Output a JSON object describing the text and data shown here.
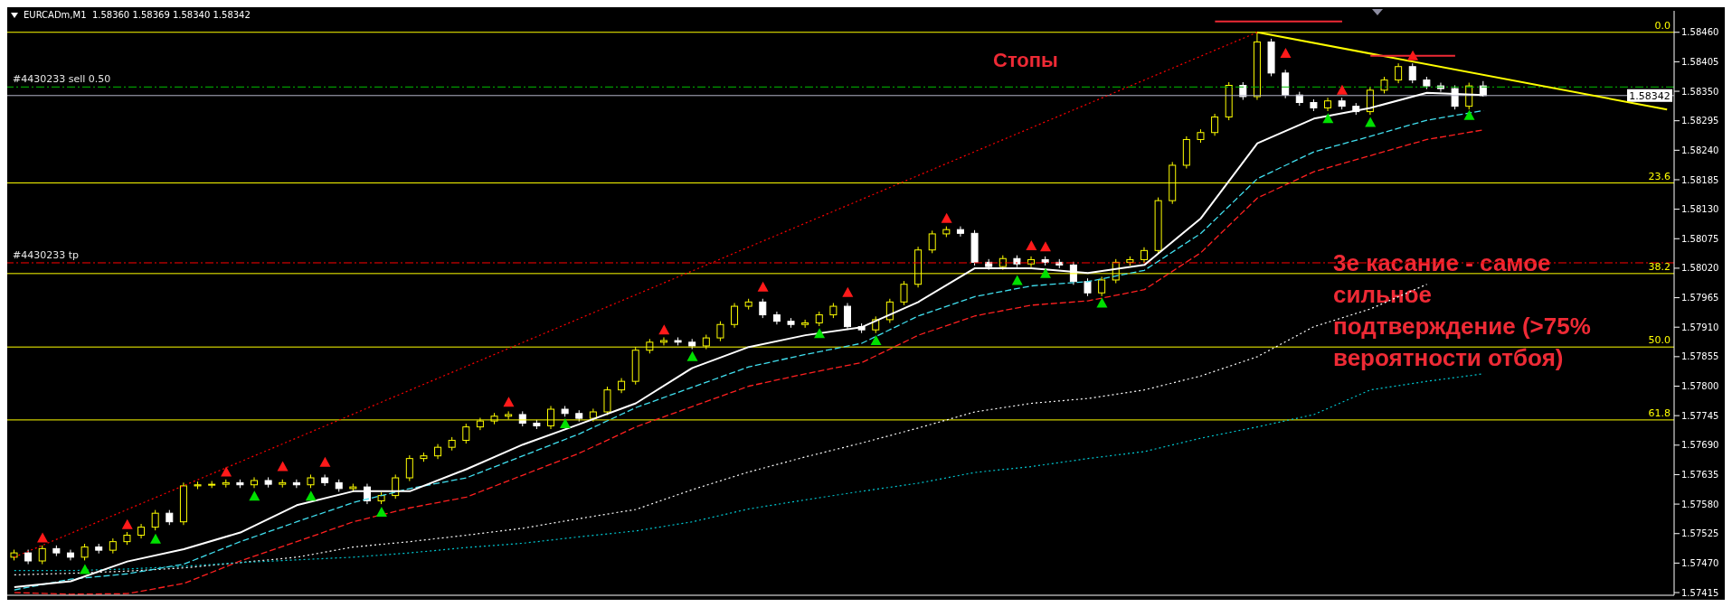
{
  "chart_data": {
    "type": "candlestick",
    "title": "EURCADm,M1  1.58360 1.58369 1.58340 1.58342",
    "categories": [
      null,
      null,
      null,
      null,
      null,
      null,
      null,
      null,
      null,
      null,
      null,
      null,
      null,
      null,
      null,
      null,
      null,
      null,
      null,
      null,
      null,
      null,
      null,
      null,
      null,
      null,
      null,
      null,
      null,
      null,
      null,
      null,
      null,
      null,
      null,
      null,
      null,
      null,
      null,
      null,
      null,
      null,
      null,
      null,
      null,
      null,
      null,
      null,
      null,
      null,
      null,
      null,
      null,
      null,
      null,
      null,
      null,
      null,
      null,
      null,
      null,
      null,
      null,
      null,
      null,
      null,
      null,
      null,
      null,
      null,
      null,
      null,
      null,
      null,
      null,
      null,
      null,
      null,
      null,
      null,
      null,
      null,
      null,
      null,
      null,
      null,
      null,
      null,
      null,
      null,
      null,
      null,
      null,
      null,
      null,
      null,
      null,
      null,
      null,
      null,
      null,
      null,
      null,
      null,
      null,
      null,
      null,
      null,
      null,
      null,
      null,
      null,
      null,
      null,
      null,
      null,
      null,
      null
    ],
    "ohlc": [
      [
        1.57481,
        1.57495,
        1.57475,
        1.57489
      ],
      [
        1.57489,
        1.57495,
        1.57468,
        1.57474
      ],
      [
        1.57474,
        1.57503,
        1.57468,
        1.57497
      ],
      [
        1.57497,
        1.57503,
        1.57483,
        1.57489
      ],
      [
        1.57489,
        1.57495,
        1.57475,
        1.57481
      ],
      [
        1.57481,
        1.57506,
        1.57475,
        1.575
      ],
      [
        1.575,
        1.57506,
        1.57488,
        1.57494
      ],
      [
        1.57494,
        1.57516,
        1.57488,
        1.5751
      ],
      [
        1.5751,
        1.57528,
        1.57504,
        1.57522
      ],
      [
        1.57522,
        1.57543,
        1.57516,
        1.57537
      ],
      [
        1.57537,
        1.57569,
        1.57531,
        1.57563
      ],
      [
        1.57563,
        1.57569,
        1.57541,
        1.57547
      ],
      [
        1.57547,
        1.5762,
        1.57541,
        1.57614
      ],
      [
        1.57614,
        1.57622,
        1.57608,
        1.57616
      ],
      [
        1.57616,
        1.57623,
        1.5761,
        1.57617
      ],
      [
        1.57617,
        1.57626,
        1.57611,
        1.5762
      ],
      [
        1.5762,
        1.57626,
        1.5761,
        1.57616
      ],
      [
        1.57616,
        1.5763,
        1.5761,
        1.57624
      ],
      [
        1.57624,
        1.5763,
        1.57611,
        1.57617
      ],
      [
        1.57617,
        1.57626,
        1.57611,
        1.5762
      ],
      [
        1.5762,
        1.57626,
        1.5761,
        1.57616
      ],
      [
        1.57616,
        1.57635,
        1.5761,
        1.57629
      ],
      [
        1.57629,
        1.57635,
        1.57614,
        1.5762
      ],
      [
        1.5762,
        1.57626,
        1.57603,
        1.57609
      ],
      [
        1.57609,
        1.57618,
        1.57603,
        1.57612
      ],
      [
        1.57612,
        1.57618,
        1.5758,
        1.57586
      ],
      [
        1.57586,
        1.57602,
        1.5758,
        1.57596
      ],
      [
        1.57596,
        1.57635,
        1.5759,
        1.57629
      ],
      [
        1.57629,
        1.57671,
        1.57623,
        1.57665
      ],
      [
        1.57665,
        1.57676,
        1.57659,
        1.5767
      ],
      [
        1.5767,
        1.57692,
        1.57664,
        1.57686
      ],
      [
        1.57686,
        1.57705,
        1.5768,
        1.57699
      ],
      [
        1.57699,
        1.5773,
        1.57693,
        1.57724
      ],
      [
        1.57724,
        1.57741,
        1.57718,
        1.57735
      ],
      [
        1.57735,
        1.5775,
        1.57729,
        1.57744
      ],
      [
        1.57744,
        1.57753,
        1.57738,
        1.57747
      ],
      [
        1.57747,
        1.57753,
        1.57725,
        1.57731
      ],
      [
        1.57731,
        1.57737,
        1.5772,
        1.57726
      ],
      [
        1.57726,
        1.57763,
        1.5772,
        1.57757
      ],
      [
        1.57757,
        1.57763,
        1.57743,
        1.57749
      ],
      [
        1.57749,
        1.57755,
        1.57734,
        1.5774
      ],
      [
        1.5774,
        1.57758,
        1.57734,
        1.57752
      ],
      [
        1.57752,
        1.57799,
        1.57746,
        1.57793
      ],
      [
        1.57793,
        1.57815,
        1.57787,
        1.57809
      ],
      [
        1.57809,
        1.57873,
        1.57803,
        1.57867
      ],
      [
        1.57867,
        1.57888,
        1.57861,
        1.57882
      ],
      [
        1.57882,
        1.57891,
        1.57876,
        1.57885
      ],
      [
        1.57885,
        1.57891,
        1.57876,
        1.57882
      ],
      [
        1.57882,
        1.57888,
        1.57869,
        1.57875
      ],
      [
        1.57875,
        1.57896,
        1.57869,
        1.5789
      ],
      [
        1.5789,
        1.57921,
        1.57884,
        1.57915
      ],
      [
        1.57915,
        1.57955,
        1.57909,
        1.57949
      ],
      [
        1.57949,
        1.57963,
        1.57943,
        1.57957
      ],
      [
        1.57957,
        1.57963,
        1.57927,
        1.57933
      ],
      [
        1.57933,
        1.57939,
        1.57915,
        1.57921
      ],
      [
        1.57921,
        1.57927,
        1.57909,
        1.57915
      ],
      [
        1.57915,
        1.57924,
        1.57909,
        1.57918
      ],
      [
        1.57918,
        1.57939,
        1.57912,
        1.57933
      ],
      [
        1.57933,
        1.57955,
        1.57927,
        1.57949
      ],
      [
        1.57949,
        1.57955,
        1.57905,
        1.57911
      ],
      [
        1.57911,
        1.57917,
        1.57899,
        1.57905
      ],
      [
        1.57905,
        1.5793,
        1.57899,
        1.57924
      ],
      [
        1.57924,
        1.57963,
        1.57918,
        1.57957
      ],
      [
        1.57957,
        1.57996,
        1.57951,
        1.5799
      ],
      [
        1.5799,
        1.5806,
        1.57984,
        1.58054
      ],
      [
        1.58054,
        1.5809,
        1.58048,
        1.58084
      ],
      [
        1.58084,
        1.58098,
        1.58078,
        1.58092
      ],
      [
        1.58092,
        1.58098,
        1.58079,
        1.58085
      ],
      [
        1.58085,
        1.58091,
        1.58025,
        1.58031
      ],
      [
        1.58031,
        1.58037,
        1.58017,
        1.58023
      ],
      [
        1.58023,
        1.58044,
        1.58017,
        1.58038
      ],
      [
        1.58038,
        1.58044,
        1.58022,
        1.58028
      ],
      [
        1.58028,
        1.58042,
        1.58022,
        1.58036
      ],
      [
        1.58036,
        1.58042,
        1.58025,
        1.58031
      ],
      [
        1.58031,
        1.58037,
        1.5802,
        1.58026
      ],
      [
        1.58026,
        1.58032,
        1.57989,
        1.57995
      ],
      [
        1.57995,
        1.58001,
        1.57968,
        1.57974
      ],
      [
        1.57974,
        1.58004,
        1.57968,
        1.57998
      ],
      [
        1.57998,
        1.58037,
        1.57992,
        1.58031
      ],
      [
        1.58031,
        1.58042,
        1.58025,
        1.58036
      ],
      [
        1.58036,
        1.58059,
        1.5803,
        1.58053
      ],
      [
        1.58053,
        1.58152,
        1.58047,
        1.58146
      ],
      [
        1.58146,
        1.58218,
        1.5814,
        1.58212
      ],
      [
        1.58212,
        1.58266,
        1.58206,
        1.5826
      ],
      [
        1.5826,
        1.58279,
        1.58254,
        1.58273
      ],
      [
        1.58273,
        1.58308,
        1.58267,
        1.58302
      ],
      [
        1.58302,
        1.58367,
        1.58296,
        1.58361
      ],
      [
        1.58361,
        1.58367,
        1.58334,
        1.5834
      ],
      [
        1.5834,
        1.5846,
        1.58334,
        1.58442
      ],
      [
        1.58442,
        1.58448,
        1.58378,
        1.58384
      ],
      [
        1.58384,
        1.5839,
        1.58337,
        1.58343
      ],
      [
        1.58343,
        1.58349,
        1.58323,
        1.58329
      ],
      [
        1.58329,
        1.58335,
        1.58313,
        1.58319
      ],
      [
        1.58319,
        1.58338,
        1.58313,
        1.58332
      ],
      [
        1.58332,
        1.58338,
        1.58316,
        1.58322
      ],
      [
        1.58322,
        1.58328,
        1.58306,
        1.58312
      ],
      [
        1.58312,
        1.58358,
        1.58306,
        1.58352
      ],
      [
        1.58352,
        1.58377,
        1.58346,
        1.58371
      ],
      [
        1.58371,
        1.58402,
        1.58365,
        1.58396
      ],
      [
        1.58396,
        1.58402,
        1.58365,
        1.58371
      ],
      [
        1.58371,
        1.58377,
        1.58354,
        1.5836
      ],
      [
        1.5836,
        1.58366,
        1.58349,
        1.58355
      ],
      [
        1.58355,
        1.58361,
        1.58316,
        1.58322
      ],
      [
        1.58322,
        1.58366,
        1.58316,
        1.5836
      ],
      [
        1.5836,
        1.58369,
        1.5834,
        1.58342
      ],
      null,
      null,
      null,
      null,
      null,
      null,
      null,
      null,
      null,
      null,
      null,
      null,
      null
    ],
    "colors": [
      "#ffff00",
      "#ffffff",
      "#ffff00",
      "#ffffff",
      "#ffffff",
      "#ffff00",
      "#ffffff",
      "#ffff00",
      "#ffff00",
      "#ffff00",
      "#ffff00",
      "#ffffff",
      "#ffff00",
      "#ffff00",
      "#ffff00",
      "#ffff00",
      "#ffffff",
      "#ffff00",
      "#ffffff",
      "#ffff00",
      "#ffffff",
      "#ffff00",
      "#ffffff",
      "#ffffff",
      "#ffff00",
      "#ffffff",
      "#ffff00",
      "#ffff00",
      "#ffff00",
      "#ffff00",
      "#ffff00",
      "#ffff00",
      "#ffff00",
      "#ffff00",
      "#ffff00",
      "#ffff00",
      "#ffffff",
      "#ffffff",
      "#ffff00",
      "#ffffff",
      "#ffffff",
      "#ffff00",
      "#ffff00",
      "#ffff00",
      "#ffff00",
      "#ffff00",
      "#ffff00",
      "#ffffff",
      "#ffffff",
      "#ffff00",
      "#ffff00",
      "#ffff00",
      "#ffff00",
      "#ffffff",
      "#ffffff",
      "#ffffff",
      "#ffff00",
      "#ffff00",
      "#ffff00",
      "#ffffff",
      "#ffffff",
      "#ffff00",
      "#ffff00",
      "#ffff00",
      "#ffff00",
      "#ffff00",
      "#ffff00",
      "#ffffff",
      "#ffffff",
      "#ffffff",
      "#ffff00",
      "#ffffff",
      "#ffff00",
      "#ffffff",
      "#ffffff",
      "#ffffff",
      "#ffffff",
      "#ffff00",
      "#ffff00",
      "#ffff00",
      "#ffff00",
      "#ffff00",
      "#ffff00",
      "#ffff00",
      "#ffff00",
      "#ffff00",
      "#ffff00",
      "#ffffff",
      "#ffff00",
      "#ffffff",
      "#ffffff",
      "#ffffff",
      "#ffffff",
      "#ffff00",
      "#ffffff",
      "#ffffff",
      "#ffff00",
      "#ffff00",
      "#ffff00",
      "#ffffff",
      "#ffffff",
      "#ffffff",
      "#ffffff",
      "#ffff00",
      "#ffffff",
      null,
      null,
      null,
      null,
      null,
      null,
      null,
      null,
      null,
      null,
      null,
      null,
      null
    ],
    "series": [
      {
        "type": "line",
        "color": "#ffffff",
        "line_style": "dotted",
        "values": [
          1.57448,
          null,
          null,
          null,
          1.57451,
          null,
          null,
          null,
          1.57455,
          null,
          null,
          null,
          1.57461,
          null,
          null,
          null,
          1.57471,
          null,
          null,
          null,
          1.57481,
          null,
          null,
          null,
          1.575,
          null,
          null,
          null,
          1.5751,
          null,
          null,
          null,
          1.57522,
          null,
          null,
          null,
          1.57535,
          null,
          null,
          null,
          1.57553,
          null,
          null,
          null,
          1.5757,
          null,
          null,
          null,
          1.57607,
          null,
          null,
          null,
          1.5764,
          null,
          null,
          null,
          1.57668,
          null,
          null,
          null,
          1.57694,
          null,
          null,
          null,
          1.57722,
          null,
          null,
          null,
          1.57752,
          null,
          null,
          null,
          1.57768,
          null,
          null,
          null,
          1.57777,
          null,
          null,
          null,
          1.57793,
          null,
          null,
          null,
          1.57819,
          null,
          null,
          null,
          1.57855,
          null,
          null,
          null,
          1.57911,
          null,
          null,
          null,
          1.57944,
          null,
          null,
          null,
          1.5799,
          null,
          null,
          null,
          null,
          null,
          null,
          null,
          null,
          null,
          null,
          null,
          null,
          null,
          null,
          null,
          null,
          null
        ]
      },
      {
        "type": "line",
        "color": "#00c8d2",
        "line_style": "dotted",
        "values": [
          1.57456,
          null,
          null,
          null,
          1.57456,
          null,
          null,
          null,
          1.57459,
          null,
          null,
          null,
          1.57464,
          null,
          null,
          null,
          1.57471,
          null,
          null,
          null,
          1.57476,
          null,
          null,
          null,
          1.57481,
          null,
          null,
          null,
          1.57489,
          null,
          null,
          null,
          1.57499,
          null,
          null,
          null,
          1.57507,
          null,
          null,
          null,
          1.57519,
          null,
          null,
          null,
          1.5753,
          null,
          null,
          null,
          1.57547,
          null,
          null,
          null,
          1.57571,
          null,
          null,
          null,
          1.57588,
          null,
          null,
          null,
          1.57604,
          null,
          null,
          null,
          1.57619,
          null,
          null,
          null,
          1.57639,
          null,
          null,
          null,
          1.5765,
          null,
          null,
          null,
          1.57665,
          null,
          null,
          null,
          1.57678,
          null,
          null,
          null,
          1.57703,
          null,
          null,
          null,
          1.57724,
          null,
          null,
          null,
          1.57747,
          null,
          null,
          null,
          1.57793,
          null,
          null,
          null,
          1.57809,
          null,
          null,
          null,
          1.57823,
          null,
          null,
          null,
          null,
          null,
          null,
          null,
          null,
          null,
          null,
          null,
          null,
          null
        ]
      },
      {
        "type": "line",
        "color": "#ff2020",
        "line_style": "dashed",
        "values": [
          1.57415,
          null,
          null,
          null,
          1.57412,
          null,
          null,
          null,
          1.57413,
          null,
          null,
          null,
          1.57432,
          null,
          null,
          null,
          1.57474,
          null,
          null,
          null,
          1.5751,
          null,
          null,
          null,
          1.57547,
          null,
          null,
          null,
          1.57573,
          null,
          null,
          null,
          1.57593,
          null,
          null,
          null,
          1.57634,
          null,
          null,
          null,
          1.57675,
          null,
          null,
          null,
          1.57724,
          null,
          null,
          null,
          1.57762,
          null,
          null,
          null,
          1.578,
          null,
          null,
          null,
          1.57823,
          null,
          null,
          null,
          1.57844,
          null,
          null,
          null,
          1.57895,
          null,
          null,
          null,
          1.57931,
          null,
          null,
          null,
          1.57951,
          null,
          null,
          null,
          1.57959,
          null,
          null,
          null,
          1.5798,
          null,
          null,
          null,
          1.58049,
          null,
          null,
          null,
          1.58151,
          null,
          null,
          null,
          1.582,
          null,
          null,
          null,
          1.5823,
          null,
          null,
          null,
          1.5826,
          null,
          null,
          null,
          1.58278,
          null,
          null,
          null,
          null,
          null,
          null,
          null,
          null,
          null,
          null,
          null,
          null,
          null
        ]
      },
      {
        "type": "line",
        "color": "#40e0f0",
        "line_style": "dashed",
        "values": [
          1.5742,
          null,
          null,
          null,
          1.5744,
          null,
          null,
          null,
          1.5745,
          null,
          null,
          null,
          1.57468,
          null,
          null,
          null,
          1.5751,
          null,
          null,
          null,
          1.57547,
          null,
          null,
          null,
          1.57583,
          null,
          null,
          null,
          1.57609,
          null,
          null,
          null,
          1.57629,
          null,
          null,
          null,
          1.5767,
          null,
          null,
          null,
          1.57711,
          null,
          null,
          null,
          1.5776,
          null,
          null,
          null,
          1.57798,
          null,
          null,
          null,
          1.57836,
          null,
          null,
          null,
          1.57859,
          null,
          null,
          null,
          1.5788,
          null,
          null,
          null,
          1.57931,
          null,
          null,
          null,
          1.57967,
          null,
          null,
          null,
          1.57987,
          null,
          null,
          null,
          1.57995,
          null,
          null,
          null,
          1.58016,
          null,
          null,
          null,
          1.58085,
          null,
          null,
          null,
          1.58187,
          null,
          null,
          null,
          1.58237,
          null,
          null,
          null,
          1.58266,
          null,
          null,
          null,
          1.58296,
          null,
          null,
          null,
          1.58314,
          null,
          null,
          null,
          null,
          null,
          null,
          null,
          null,
          null,
          null,
          null,
          null,
          null
        ]
      },
      {
        "type": "line",
        "color": "#ffffff",
        "line_style": "solid",
        "values": [
          1.57425,
          null,
          null,
          null,
          1.57436,
          null,
          null,
          null,
          1.57473,
          null,
          null,
          null,
          1.57496,
          null,
          null,
          null,
          1.57527,
          null,
          null,
          null,
          1.57578,
          null,
          null,
          null,
          1.57604,
          null,
          null,
          null,
          1.57604,
          null,
          null,
          null,
          1.57645,
          null,
          null,
          null,
          1.57691,
          null,
          null,
          null,
          1.57729,
          null,
          null,
          null,
          1.57768,
          null,
          null,
          null,
          1.57834,
          null,
          null,
          null,
          1.57873,
          null,
          null,
          null,
          1.57895,
          null,
          null,
          null,
          1.5791,
          null,
          null,
          null,
          1.57957,
          null,
          null,
          null,
          1.5802,
          null,
          null,
          null,
          1.5802,
          null,
          null,
          null,
          1.58011,
          null,
          null,
          null,
          1.58026,
          null,
          null,
          null,
          1.58113,
          null,
          null,
          null,
          1.58253,
          null,
          null,
          null,
          1.58299,
          null,
          null,
          null,
          1.58319,
          null,
          null,
          null,
          1.58347,
          null,
          null,
          null,
          1.58343,
          null,
          null,
          null,
          null,
          null,
          null,
          null,
          null,
          null,
          null,
          null,
          null,
          null
        ]
      },
      {
        "type": "line",
        "color": "#ff0000",
        "line_style": "dotted",
        "values": [
          1.57481,
          null,
          null,
          null,
          null,
          null,
          null,
          null,
          null,
          null,
          null,
          null,
          null,
          null,
          null,
          null,
          null,
          null,
          null,
          null,
          null,
          null,
          null,
          null,
          null,
          null,
          null,
          null,
          null,
          null,
          null,
          null,
          null,
          null,
          null,
          null,
          null,
          null,
          null,
          null,
          null,
          null,
          null,
          null,
          null,
          null,
          null,
          null,
          null,
          null,
          null,
          null,
          null,
          null,
          null,
          null,
          null,
          null,
          null,
          null,
          null,
          null,
          null,
          null,
          null,
          null,
          null,
          null,
          null,
          null,
          null,
          null,
          null,
          null,
          null,
          null,
          null,
          null,
          null,
          null,
          null,
          null,
          null,
          null,
          null,
          null,
          null,
          null,
          1.5846,
          null,
          null,
          null,
          null,
          null,
          null,
          null,
          null,
          null,
          null,
          null,
          null,
          null,
          null,
          null,
          null,
          null,
          null,
          null,
          null,
          null,
          null,
          null,
          null,
          null,
          null,
          null,
          null,
          null
        ]
      },
      {
        "type": "line",
        "color": "#ffff00",
        "line_style": "solid",
        "values": [
          null,
          null,
          null,
          null,
          null,
          null,
          null,
          null,
          null,
          null,
          null,
          null,
          null,
          null,
          null,
          null,
          null,
          null,
          null,
          null,
          null,
          null,
          null,
          null,
          null,
          null,
          null,
          null,
          null,
          null,
          null,
          null,
          null,
          null,
          null,
          null,
          null,
          null,
          null,
          null,
          null,
          null,
          null,
          null,
          null,
          null,
          null,
          null,
          null,
          null,
          null,
          null,
          null,
          null,
          null,
          null,
          null,
          null,
          null,
          null,
          null,
          null,
          null,
          null,
          null,
          null,
          null,
          null,
          null,
          null,
          null,
          null,
          null,
          null,
          null,
          null,
          null,
          null,
          null,
          null,
          null,
          null,
          null,
          null,
          null,
          null,
          null,
          null,
          1.5846,
          null,
          null,
          null,
          null,
          null,
          null,
          null,
          null,
          null,
          null,
          null,
          null,
          null,
          null,
          null,
          null,
          null,
          null,
          null,
          null,
          null,
          null,
          null,
          null,
          null,
          null,
          null,
          null,
          1.58316
        ]
      },
      {
        "type": "line",
        "color": "#ee2a35",
        "line_style": "solid",
        "values": [
          null,
          null,
          null,
          null,
          null,
          null,
          null,
          null,
          null,
          null,
          null,
          null,
          null,
          null,
          null,
          null,
          null,
          null,
          null,
          null,
          null,
          null,
          null,
          null,
          null,
          null,
          null,
          null,
          null,
          null,
          null,
          null,
          null,
          null,
          null,
          null,
          null,
          null,
          null,
          null,
          null,
          null,
          null,
          null,
          null,
          null,
          null,
          null,
          null,
          null,
          null,
          null,
          null,
          null,
          null,
          null,
          null,
          null,
          null,
          null,
          null,
          null,
          null,
          null,
          null,
          null,
          null,
          null,
          null,
          null,
          null,
          null,
          null,
          null,
          null,
          null,
          null,
          null,
          null,
          null,
          null,
          null,
          null,
          null,
          null,
          1.5848,
          1.5848,
          1.5848,
          1.5848,
          1.5848,
          1.5848,
          1.5848,
          1.5848,
          1.5848,
          1.5848,
          null,
          null,
          null,
          null,
          null,
          null,
          null,
          null,
          null,
          null,
          null,
          null,
          null,
          null,
          null,
          null,
          null,
          null,
          null,
          null,
          null,
          null,
          null
        ]
      },
      {
        "type": "line",
        "color": "#ee2a35",
        "line_style": "solid",
        "values": [
          null,
          null,
          null,
          null,
          null,
          null,
          null,
          null,
          null,
          null,
          null,
          null,
          null,
          null,
          null,
          null,
          null,
          null,
          null,
          null,
          null,
          null,
          null,
          null,
          null,
          null,
          null,
          null,
          null,
          null,
          null,
          null,
          null,
          null,
          null,
          null,
          null,
          null,
          null,
          null,
          null,
          null,
          null,
          null,
          null,
          null,
          null,
          null,
          null,
          null,
          null,
          null,
          null,
          null,
          null,
          null,
          null,
          null,
          null,
          null,
          null,
          null,
          null,
          null,
          null,
          null,
          null,
          null,
          null,
          null,
          null,
          null,
          null,
          null,
          null,
          null,
          null,
          null,
          null,
          null,
          null,
          null,
          null,
          null,
          null,
          null,
          null,
          null,
          null,
          null,
          null,
          null,
          null,
          null,
          null,
          null,
          1.58416,
          1.58416,
          1.58416,
          1.58416,
          1.58416,
          1.58416,
          1.58416,
          null,
          null,
          null,
          null,
          null,
          null,
          null,
          null,
          null,
          null,
          null,
          null,
          null,
          null,
          null
        ]
      },
      {
        "type": "scatter",
        "color": "#ff1a1a",
        "marker": "triangle",
        "values": [
          null,
          null,
          1.57517,
          null,
          null,
          null,
          null,
          null,
          1.57542,
          null,
          null,
          null,
          null,
          null,
          null,
          1.5764,
          null,
          null,
          null,
          1.5765,
          null,
          null,
          1.57658,
          null,
          null,
          null,
          null,
          null,
          null,
          null,
          null,
          null,
          null,
          null,
          null,
          1.5777,
          null,
          null,
          null,
          null,
          null,
          null,
          null,
          null,
          null,
          null,
          1.57905,
          null,
          null,
          null,
          null,
          null,
          null,
          1.57985,
          null,
          null,
          null,
          null,
          null,
          1.57975,
          null,
          null,
          null,
          null,
          null,
          null,
          1.58113,
          null,
          null,
          null,
          null,
          null,
          1.58062,
          1.5806,
          null,
          null,
          null,
          null,
          null,
          null,
          null,
          null,
          null,
          null,
          null,
          null,
          null,
          null,
          null,
          null,
          1.58421,
          null,
          null,
          null,
          1.58352,
          null,
          null,
          null,
          null,
          1.58416,
          null,
          null,
          null,
          null,
          null,
          null,
          null,
          null,
          null,
          null,
          null,
          null,
          null,
          null,
          null,
          null,
          null,
          null
        ]
      },
      {
        "type": "scatter",
        "color": "#00e000",
        "marker": "triangle",
        "values": [
          null,
          null,
          null,
          null,
          null,
          1.57458,
          null,
          null,
          null,
          null,
          1.57515,
          null,
          null,
          null,
          null,
          null,
          null,
          1.57595,
          null,
          null,
          null,
          1.57595,
          null,
          null,
          null,
          null,
          1.57565,
          null,
          null,
          null,
          null,
          null,
          null,
          null,
          null,
          null,
          null,
          null,
          null,
          1.5773,
          null,
          null,
          null,
          null,
          null,
          null,
          null,
          null,
          1.57855,
          null,
          null,
          null,
          null,
          null,
          null,
          null,
          null,
          1.57898,
          null,
          null,
          null,
          1.57885,
          null,
          null,
          null,
          null,
          null,
          null,
          null,
          null,
          null,
          1.57997,
          null,
          1.5801,
          null,
          null,
          null,
          1.57955,
          null,
          null,
          null,
          null,
          null,
          null,
          null,
          null,
          null,
          null,
          null,
          null,
          null,
          null,
          null,
          1.58299,
          null,
          null,
          1.58292,
          null,
          null,
          null,
          null,
          null,
          null,
          1.58305,
          null,
          null,
          null,
          null,
          null,
          null,
          null,
          null,
          null,
          null,
          null,
          null,
          null,
          null
        ]
      }
    ],
    "ref_lines": [
      {
        "axis": "y",
        "value": 1.5846,
        "color": "#ffff00",
        "line_style": "solid"
      },
      {
        "axis": "y",
        "value": 1.58179,
        "color": "#ffff00",
        "line_style": "solid"
      },
      {
        "axis": "y",
        "value": 1.5801,
        "color": "#ffff00",
        "line_style": "solid"
      },
      {
        "axis": "y",
        "value": 1.57873,
        "color": "#ffff00",
        "line_style": "solid"
      },
      {
        "axis": "y",
        "value": 1.57737,
        "color": "#ffff00",
        "line_style": "solid"
      },
      {
        "axis": "y",
        "value": 1.58358,
        "label": "#4430233 sell 0.50",
        "color": "#00c000",
        "line_style": "dashed"
      },
      {
        "axis": "y",
        "value": 1.5803,
        "label": "#4430233 tp",
        "color": "#ff0000",
        "line_style": "dashed"
      },
      {
        "axis": "y",
        "value": 1.58342,
        "label": "1.58342",
        "color": "#b4b4c8"
      }
    ],
    "ylim": [
      1.5741,
      1.585
    ],
    "yticks": [
      1.57415,
      {
        "value": 1.5747,
        "label": "1.57470"
      },
      1.57525,
      {
        "value": 1.5758,
        "label": "1.57580"
      },
      1.57635,
      {
        "value": 1.5769,
        "label": "1.57690"
      },
      1.57745,
      {
        "value": 1.578,
        "label": "1.57800"
      },
      1.57855,
      {
        "value": 1.5791,
        "label": "1.57910"
      },
      1.57965,
      {
        "value": 1.5802,
        "label": "1.58020"
      },
      1.58075,
      {
        "value": 1.5813,
        "label": "1.58130"
      },
      1.58185,
      {
        "value": 1.5824,
        "label": "1.58240"
      },
      1.58295,
      {
        "value": 1.5835,
        "label": "1.58350"
      },
      1.58405,
      {
        "value": 1.5846,
        "label": "1.58460"
      }
    ],
    "tick_labels": "y",
    "annotations": [
      "Стопы",
      "3е касание - самое сильное подтверждение (>75% вероятности отбоя)",
      {
        "text": "0.0",
        "y": 1.5846
      },
      {
        "text": "23.6",
        "y": 1.58179
      },
      {
        "text": "38.2",
        "y": 1.5801
      },
      {
        "text": "50.0",
        "y": 1.57873
      },
      {
        "text": "61.8",
        "y": 1.57737
      }
    ]
  }
}
